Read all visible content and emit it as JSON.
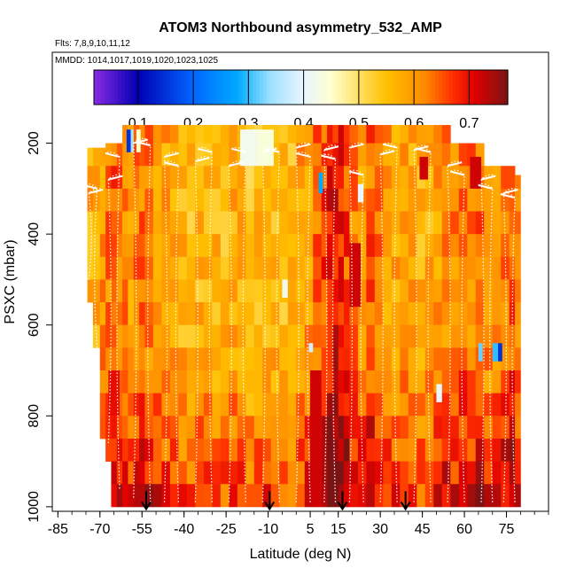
{
  "chart_data": {
    "type": "heatmap",
    "title": "ATOM3 Northbound asymmetry_532_AMP",
    "subtitle_flights": "Flts: 7,8,9,10,11,12",
    "subtitle_dates": "MMDD: 1014,1017,1019,1020,1023,1025",
    "xlabel": "Latitude (deg N)",
    "ylabel": "PSXC (mbar)",
    "xlim": [
      -87,
      90
    ],
    "ylim": [
      1010,
      0
    ],
    "x_ticks": [
      "-85",
      "-70",
      "-55",
      "-40",
      "-25",
      "-10",
      "5",
      "15",
      "30",
      "45",
      "60",
      "75"
    ],
    "y_ticks": [
      "200",
      "400",
      "600",
      "800",
      "1000"
    ],
    "colorbar": {
      "min": 0.02,
      "max": 0.77,
      "tick_labels": [
        "0.1",
        "0.2",
        "0.3",
        "0.4",
        "0.5",
        "0.6",
        "0.7"
      ],
      "stops": [
        {
          "v": 0.02,
          "color": "#8a2be2"
        },
        {
          "v": 0.1,
          "color": "#0000b4"
        },
        {
          "v": 0.2,
          "color": "#0066ff"
        },
        {
          "v": 0.28,
          "color": "#00aaff"
        },
        {
          "v": 0.34,
          "color": "#9fe1ff"
        },
        {
          "v": 0.4,
          "color": "#e8f6ff"
        },
        {
          "v": 0.45,
          "color": "#ffffd0"
        },
        {
          "v": 0.5,
          "color": "#ffe066"
        },
        {
          "v": 0.55,
          "color": "#ffc000"
        },
        {
          "v": 0.62,
          "color": "#ff8a00"
        },
        {
          "v": 0.67,
          "color": "#ff3000"
        },
        {
          "v": 0.71,
          "color": "#e00000"
        },
        {
          "v": 0.77,
          "color": "#7a1414"
        }
      ]
    },
    "pressure_levels": [
      180,
      225,
      275,
      325,
      375,
      425,
      475,
      525,
      575,
      625,
      675,
      725,
      775,
      825,
      875,
      925,
      975
    ],
    "profiles": [
      {
        "lat_min": -74.5,
        "lat_max": -72.5,
        "p_top": 220,
        "p_bot": 520,
        "value": 0.58
      },
      {
        "lat_min": -72.5,
        "lat_max": -70.0,
        "p_top": 220,
        "p_bot": 660,
        "value": 0.57
      },
      {
        "lat_min": -70.0,
        "lat_max": -68.0,
        "p_top": 220,
        "p_bot": 820,
        "value": 0.6
      },
      {
        "lat_min": -68.0,
        "lat_max": -66.0,
        "p_top": 210,
        "p_bot": 880,
        "value": 0.62
      },
      {
        "lat_min": -66.0,
        "lat_max": -64.0,
        "p_top": 210,
        "p_bot": 1000,
        "value": 0.64
      },
      {
        "lat_min": -64.0,
        "lat_max": -62.0,
        "p_top": 205,
        "p_bot": 1000,
        "value": 0.63
      },
      {
        "lat_min": -62.0,
        "lat_max": -60.0,
        "p_top": 170,
        "p_bot": 1000,
        "value": 0.61
      },
      {
        "lat_min": -60.0,
        "lat_max": -58.0,
        "p_top": 170,
        "p_bot": 1000,
        "value": 0.6
      },
      {
        "lat_min": -58.0,
        "lat_max": -56.0,
        "p_top": 170,
        "p_bot": 1000,
        "value": 0.62
      },
      {
        "lat_min": -56.0,
        "lat_max": -54.0,
        "p_top": 170,
        "p_bot": 1000,
        "value": 0.63
      },
      {
        "lat_min": -54.0,
        "lat_max": -51.0,
        "p_top": 170,
        "p_bot": 1000,
        "value": 0.62
      },
      {
        "lat_min": -51.0,
        "lat_max": -48.0,
        "p_top": 170,
        "p_bot": 1000,
        "value": 0.6
      },
      {
        "lat_min": -48.0,
        "lat_max": -45.0,
        "p_top": 170,
        "p_bot": 1000,
        "value": 0.59
      },
      {
        "lat_min": -45.0,
        "lat_max": -42.0,
        "p_top": 170,
        "p_bot": 1000,
        "value": 0.58
      },
      {
        "lat_min": -42.0,
        "lat_max": -39.0,
        "p_top": 170,
        "p_bot": 1000,
        "value": 0.57
      },
      {
        "lat_min": -39.0,
        "lat_max": -36.0,
        "p_top": 170,
        "p_bot": 1000,
        "value": 0.56
      },
      {
        "lat_min": -36.0,
        "lat_max": -33.0,
        "p_top": 170,
        "p_bot": 1000,
        "value": 0.57
      },
      {
        "lat_min": -33.0,
        "lat_max": -30.0,
        "p_top": 170,
        "p_bot": 1000,
        "value": 0.58
      },
      {
        "lat_min": -30.0,
        "lat_max": -27.0,
        "p_top": 170,
        "p_bot": 1000,
        "value": 0.57
      },
      {
        "lat_min": -27.0,
        "lat_max": -24.0,
        "p_top": 170,
        "p_bot": 1000,
        "value": 0.56
      },
      {
        "lat_min": -24.0,
        "lat_max": -21.0,
        "p_top": 170,
        "p_bot": 1000,
        "value": 0.58
      },
      {
        "lat_min": -21.0,
        "lat_max": -18.0,
        "p_top": 170,
        "p_bot": 1000,
        "value": 0.57
      },
      {
        "lat_min": -18.0,
        "lat_max": -15.0,
        "p_top": 170,
        "p_bot": 1000,
        "value": 0.55
      },
      {
        "lat_min": -15.0,
        "lat_max": -12.0,
        "p_top": 170,
        "p_bot": 1000,
        "value": 0.56
      },
      {
        "lat_min": -12.0,
        "lat_max": -9.0,
        "p_top": 170,
        "p_bot": 1000,
        "value": 0.58
      },
      {
        "lat_min": -9.0,
        "lat_max": -6.0,
        "p_top": 170,
        "p_bot": 1000,
        "value": 0.57
      },
      {
        "lat_min": -6.0,
        "lat_max": -3.0,
        "p_top": 170,
        "p_bot": 1000,
        "value": 0.54
      },
      {
        "lat_min": -3.0,
        "lat_max": 0.0,
        "p_top": 170,
        "p_bot": 1000,
        "value": 0.56
      },
      {
        "lat_min": 0.0,
        "lat_max": 3.0,
        "p_top": 170,
        "p_bot": 1000,
        "value": 0.59
      },
      {
        "lat_min": 3.0,
        "lat_max": 6.0,
        "p_top": 170,
        "p_bot": 1000,
        "value": 0.6
      },
      {
        "lat_min": 6.0,
        "lat_max": 9.0,
        "p_top": 170,
        "p_bot": 1000,
        "value": 0.63
      },
      {
        "lat_min": 9.0,
        "lat_max": 11.0,
        "p_top": 170,
        "p_bot": 1000,
        "value": 0.66
      },
      {
        "lat_min": 11.0,
        "lat_max": 13.0,
        "p_top": 170,
        "p_bot": 1000,
        "value": 0.69
      },
      {
        "lat_min": 13.0,
        "lat_max": 15.0,
        "p_top": 170,
        "p_bot": 1000,
        "value": 0.7
      },
      {
        "lat_min": 15.0,
        "lat_max": 17.0,
        "p_top": 170,
        "p_bot": 1000,
        "value": 0.68
      },
      {
        "lat_min": 17.0,
        "lat_max": 19.0,
        "p_top": 170,
        "p_bot": 1000,
        "value": 0.66
      },
      {
        "lat_min": 19.0,
        "lat_max": 22.0,
        "p_top": 170,
        "p_bot": 1000,
        "value": 0.62
      },
      {
        "lat_min": 22.0,
        "lat_max": 25.0,
        "p_top": 170,
        "p_bot": 1000,
        "value": 0.6
      },
      {
        "lat_min": 25.0,
        "lat_max": 28.0,
        "p_top": 170,
        "p_bot": 1000,
        "value": 0.64
      },
      {
        "lat_min": 28.0,
        "lat_max": 31.0,
        "p_top": 170,
        "p_bot": 1000,
        "value": 0.62
      },
      {
        "lat_min": 31.0,
        "lat_max": 34.0,
        "p_top": 170,
        "p_bot": 1000,
        "value": 0.6
      },
      {
        "lat_min": 34.0,
        "lat_max": 37.0,
        "p_top": 170,
        "p_bot": 1000,
        "value": 0.58
      },
      {
        "lat_min": 37.0,
        "lat_max": 40.0,
        "p_top": 170,
        "p_bot": 1000,
        "value": 0.6
      },
      {
        "lat_min": 40.0,
        "lat_max": 43.0,
        "p_top": 170,
        "p_bot": 1000,
        "value": 0.59
      },
      {
        "lat_min": 43.0,
        "lat_max": 46.0,
        "p_top": 170,
        "p_bot": 1000,
        "value": 0.57
      },
      {
        "lat_min": 46.0,
        "lat_max": 49.0,
        "p_top": 170,
        "p_bot": 1000,
        "value": 0.58
      },
      {
        "lat_min": 49.0,
        "lat_max": 52.0,
        "p_top": 170,
        "p_bot": 1000,
        "value": 0.6
      },
      {
        "lat_min": 52.0,
        "lat_max": 55.0,
        "p_top": 170,
        "p_bot": 1000,
        "value": 0.62
      },
      {
        "lat_min": 55.0,
        "lat_max": 58.0,
        "p_top": 210,
        "p_bot": 1000,
        "value": 0.61
      },
      {
        "lat_min": 58.0,
        "lat_max": 61.0,
        "p_top": 210,
        "p_bot": 1000,
        "value": 0.63
      },
      {
        "lat_min": 61.0,
        "lat_max": 64.0,
        "p_top": 210,
        "p_bot": 1000,
        "value": 0.62
      },
      {
        "lat_min": 64.0,
        "lat_max": 67.0,
        "p_top": 210,
        "p_bot": 1000,
        "value": 0.64
      },
      {
        "lat_min": 67.0,
        "lat_max": 70.0,
        "p_top": 260,
        "p_bot": 1000,
        "value": 0.6
      },
      {
        "lat_min": 70.0,
        "lat_max": 73.0,
        "p_top": 260,
        "p_bot": 1000,
        "value": 0.61
      },
      {
        "lat_min": 73.0,
        "lat_max": 76.0,
        "p_top": 260,
        "p_bot": 1000,
        "value": 0.63
      },
      {
        "lat_min": 76.0,
        "lat_max": 78.0,
        "p_top": 260,
        "p_bot": 1000,
        "value": 0.65
      },
      {
        "lat_min": 78.0,
        "lat_max": 80.0,
        "p_top": 280,
        "p_bot": 1000,
        "value": 0.62
      }
    ],
    "anomalies": [
      {
        "lat_min": -60.5,
        "lat_max": -59.0,
        "p_top": 170,
        "p_bot": 220,
        "value": 0.15
      },
      {
        "lat_min": -59.0,
        "lat_max": -58.0,
        "p_top": 170,
        "p_bot": 220,
        "value": 0.35
      },
      {
        "lat_min": -57.0,
        "lat_max": -55.5,
        "p_top": 170,
        "p_bot": 220,
        "value": 0.45
      },
      {
        "lat_min": -20.0,
        "lat_max": -14.0,
        "p_top": 170,
        "p_bot": 250,
        "value": 0.42
      },
      {
        "lat_min": -14.0,
        "lat_max": -8.0,
        "p_top": 170,
        "p_bot": 250,
        "value": 0.44
      },
      {
        "lat_min": 8.0,
        "lat_max": 9.5,
        "p_top": 265,
        "p_bot": 310,
        "value": 0.28
      },
      {
        "lat_min": 22.0,
        "lat_max": 24.0,
        "p_top": 290,
        "p_bot": 330,
        "value": 0.4
      },
      {
        "lat_min": 4.5,
        "lat_max": 6.0,
        "p_top": 640,
        "p_bot": 660,
        "value": 0.38
      },
      {
        "lat_min": -5.0,
        "lat_max": -3.0,
        "p_top": 500,
        "p_bot": 540,
        "value": 0.42
      },
      {
        "lat_min": 70.0,
        "lat_max": 72.0,
        "p_top": 640,
        "p_bot": 680,
        "value": 0.3
      },
      {
        "lat_min": 72.0,
        "lat_max": 73.5,
        "p_top": 640,
        "p_bot": 680,
        "value": 0.15
      },
      {
        "lat_min": 65.0,
        "lat_max": 66.5,
        "p_top": 640,
        "p_bot": 680,
        "value": 0.32
      },
      {
        "lat_min": 50.0,
        "lat_max": 52.0,
        "p_top": 730,
        "p_bot": 770,
        "value": 0.4
      },
      {
        "lat_min": -67.0,
        "lat_max": -63.0,
        "p_top": 700,
        "p_bot": 800,
        "value": 0.7
      },
      {
        "lat_min": 5.0,
        "lat_max": 9.0,
        "p_top": 700,
        "p_bot": 1000,
        "value": 0.72
      },
      {
        "lat_min": 19.0,
        "lat_max": 23.0,
        "p_top": 420,
        "p_bot": 560,
        "value": 0.72
      },
      {
        "lat_min": 44.0,
        "lat_max": 47.0,
        "p_top": 230,
        "p_bot": 280,
        "value": 0.72
      },
      {
        "lat_min": 62.0,
        "lat_max": 66.0,
        "p_top": 230,
        "p_bot": 300,
        "value": 0.72
      }
    ],
    "flight_tracks": [
      {
        "lat": -74.0,
        "p_top": 310,
        "p_bot": 500
      },
      {
        "lat": -71.0,
        "p_top": 300,
        "p_bot": 650
      },
      {
        "lat": -67.0,
        "p_top": 280,
        "p_bot": 860
      },
      {
        "lat": -63.0,
        "p_top": 230,
        "p_bot": 960
      },
      {
        "lat": -58.0,
        "p_top": 200,
        "p_bot": 980
      },
      {
        "lat": -52.0,
        "p_top": 205,
        "p_bot": 990
      },
      {
        "lat": -47.0,
        "p_top": 230,
        "p_bot": 990
      },
      {
        "lat": -42.0,
        "p_top": 250,
        "p_bot": 990
      },
      {
        "lat": -36.0,
        "p_top": 240,
        "p_bot": 990
      },
      {
        "lat": -30.0,
        "p_top": 220,
        "p_bot": 990
      },
      {
        "lat": -24.0,
        "p_top": 250,
        "p_bot": 990
      },
      {
        "lat": -18.0,
        "p_top": 220,
        "p_bot": 990
      },
      {
        "lat": -12.0,
        "p_top": 220,
        "p_bot": 990
      },
      {
        "lat": -6.0,
        "p_top": 220,
        "p_bot": 990
      },
      {
        "lat": 0.0,
        "p_top": 210,
        "p_bot": 990
      },
      {
        "lat": 5.0,
        "p_top": 230,
        "p_bot": 990
      },
      {
        "lat": 10.0,
        "p_top": 215,
        "p_bot": 990
      },
      {
        "lat": 14.0,
        "p_top": 235,
        "p_bot": 990
      },
      {
        "lat": 19.0,
        "p_top": 210,
        "p_bot": 990
      },
      {
        "lat": 24.0,
        "p_top": 270,
        "p_bot": 990
      },
      {
        "lat": 30.0,
        "p_top": 225,
        "p_bot": 990
      },
      {
        "lat": 36.0,
        "p_top": 210,
        "p_bot": 990
      },
      {
        "lat": 42.0,
        "p_top": 215,
        "p_bot": 990
      },
      {
        "lat": 48.0,
        "p_top": 220,
        "p_bot": 990
      },
      {
        "lat": 54.0,
        "p_top": 250,
        "p_bot": 990
      },
      {
        "lat": 60.0,
        "p_top": 270,
        "p_bot": 990
      },
      {
        "lat": 66.0,
        "p_top": 280,
        "p_bot": 990
      },
      {
        "lat": 70.0,
        "p_top": 300,
        "p_bot": 990
      },
      {
        "lat": 74.0,
        "p_top": 310,
        "p_bot": 990
      },
      {
        "lat": 78.0,
        "p_top": 320,
        "p_bot": 990
      }
    ],
    "arrows": [
      {
        "lat": -53.5,
        "p_tip": 1005
      },
      {
        "lat": -9.5,
        "p_tip": 1005
      },
      {
        "lat": 16.5,
        "p_tip": 1005
      },
      {
        "lat": 39.0,
        "p_tip": 1005
      }
    ]
  }
}
